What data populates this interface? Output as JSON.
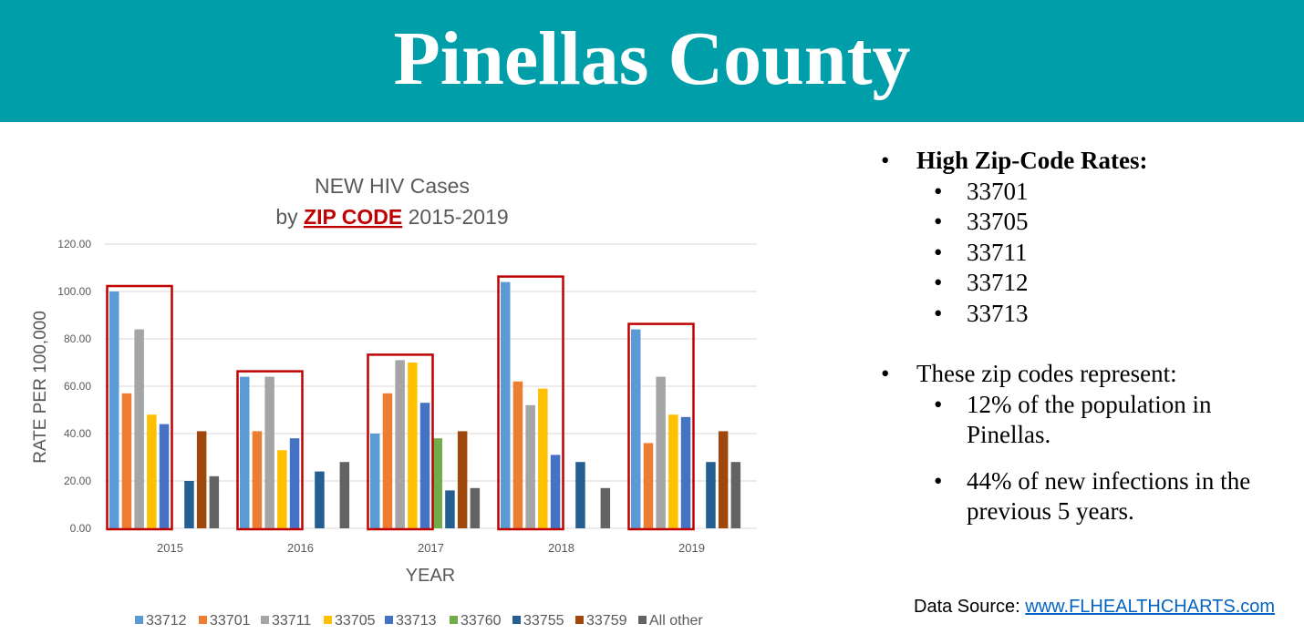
{
  "banner": {
    "title": "Pinellas County"
  },
  "chart_data": {
    "type": "bar",
    "title_line1": "NEW HIV Cases",
    "title_prefix": "by",
    "title_highlight": "ZIP CODE",
    "title_suffix": "2015-2019",
    "xlabel": "YEAR",
    "ylabel": "RATE PER 100,000",
    "ylim": [
      0,
      120
    ],
    "yticks": [
      "0.00",
      "20.00",
      "40.00",
      "60.00",
      "80.00",
      "100.00",
      "120.00"
    ],
    "categories": [
      "2015",
      "2016",
      "2017",
      "2018",
      "2019"
    ],
    "legend_position": "bottom",
    "grid": true,
    "series": [
      {
        "name": "33712",
        "color": "#5b9bd5",
        "values": [
          100,
          64,
          40,
          104,
          84
        ]
      },
      {
        "name": "33701",
        "color": "#ed7d31",
        "values": [
          57,
          41,
          57,
          62,
          36
        ]
      },
      {
        "name": "33711",
        "color": "#a5a5a5",
        "values": [
          84,
          64,
          71,
          52,
          64
        ]
      },
      {
        "name": "33705",
        "color": "#ffc000",
        "values": [
          48,
          33,
          70,
          59,
          48
        ]
      },
      {
        "name": "33713",
        "color": "#4472c4",
        "values": [
          44,
          38,
          53,
          31,
          47
        ]
      },
      {
        "name": "33760",
        "color": "#70ad47",
        "values": [
          0,
          0,
          38,
          0,
          0
        ]
      },
      {
        "name": "33755",
        "color": "#255e91",
        "values": [
          20,
          24,
          16,
          28,
          28
        ]
      },
      {
        "name": "33759",
        "color": "#9e480e",
        "values": [
          41,
          0,
          41,
          0,
          41
        ]
      },
      {
        "name": "All other",
        "color": "#636363",
        "values": [
          22,
          28,
          17,
          17,
          28
        ]
      }
    ],
    "highlight_box_color": "#c00000",
    "highlight_box_note_color": "#c00000"
  },
  "bullets": {
    "heading": "High Zip-Code Rates:",
    "zips": [
      "33701",
      "33705",
      "33711",
      "33712",
      "33713"
    ],
    "represent_intro": "These zip codes represent:",
    "stat1_line1": "12% of the population in",
    "stat1_line2": "Pinellas.",
    "stat2_line1": "44% of new infections in the",
    "stat2_line2": "previous 5 years."
  },
  "source": {
    "label": "Data Source:",
    "link": "www.FLHEALTHCHARTS.com"
  }
}
